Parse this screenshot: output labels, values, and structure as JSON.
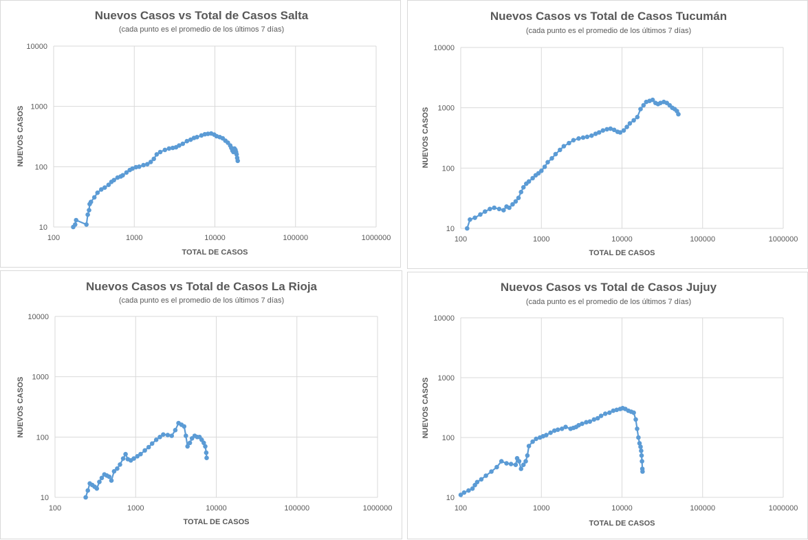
{
  "chart_data": [
    {
      "type": "scatter",
      "title": "Nuevos Casos vs Total de Casos Salta",
      "subtitle": "(cada punto es el promedio de los últimos 7 días)",
      "xlabel": "TOTAL DE CASOS",
      "ylabel": "NUEVOS CASOS",
      "xscale": "log",
      "yscale": "log",
      "xlim": [
        100,
        1000000
      ],
      "ylim": [
        10,
        10000
      ],
      "xticks": [
        "100",
        "1000",
        "10000",
        "100000",
        "1000000"
      ],
      "yticks": [
        "10",
        "100",
        "1000",
        "10000"
      ],
      "series_color": "#5b9bd5",
      "x": [
        175,
        185,
        190,
        255,
        265,
        275,
        280,
        290,
        320,
        350,
        390,
        430,
        480,
        520,
        560,
        620,
        680,
        720,
        800,
        880,
        950,
        1050,
        1150,
        1300,
        1450,
        1600,
        1750,
        1900,
        2100,
        2400,
        2700,
        3000,
        3300,
        3600,
        4000,
        4500,
        5000,
        5500,
        6000,
        6800,
        7500,
        8200,
        9000,
        9800,
        10500,
        11500,
        12500,
        13500,
        14500,
        15500,
        16000,
        16500,
        17000,
        17500,
        18000,
        18300,
        18600,
        18900,
        19200
      ],
      "y": [
        10,
        11,
        13,
        11,
        16,
        19,
        24,
        26,
        31,
        37,
        42,
        45,
        50,
        56,
        60,
        66,
        69,
        72,
        80,
        88,
        93,
        98,
        100,
        106,
        110,
        120,
        135,
        160,
        175,
        190,
        200,
        205,
        210,
        225,
        240,
        265,
        280,
        300,
        310,
        330,
        345,
        350,
        355,
        340,
        320,
        310,
        295,
        270,
        250,
        225,
        205,
        185,
        175,
        200,
        190,
        175,
        160,
        140,
        125
      ]
    },
    {
      "type": "scatter",
      "title": "Nuevos Casos vs Total de Casos Tucumán",
      "subtitle": "(cada punto es el promedio de los últimos 7 días)",
      "xlabel": "TOTAL DE CASOS",
      "ylabel": "NUEVOS CASOS",
      "xscale": "log",
      "yscale": "log",
      "xlim": [
        100,
        1000000
      ],
      "ylim": [
        10,
        10000
      ],
      "xticks": [
        "100",
        "1000",
        "10000",
        "100000",
        "1000000"
      ],
      "yticks": [
        "10",
        "100",
        "1000",
        "10000"
      ],
      "series_color": "#5b9bd5",
      "x": [
        120,
        130,
        150,
        175,
        200,
        230,
        260,
        300,
        340,
        370,
        400,
        440,
        480,
        520,
        560,
        600,
        650,
        700,
        780,
        850,
        920,
        1000,
        1100,
        1200,
        1350,
        1500,
        1700,
        1900,
        2200,
        2500,
        2900,
        3300,
        3700,
        4200,
        4700,
        5200,
        5800,
        6500,
        7200,
        8000,
        8800,
        9500,
        10500,
        11500,
        12500,
        14000,
        15500,
        17000,
        18500,
        20000,
        22000,
        24000,
        26000,
        28000,
        30000,
        33000,
        36000,
        39000,
        42000,
        45000,
        48000,
        50000
      ],
      "y": [
        10,
        14,
        15,
        17,
        19,
        21,
        22,
        21,
        20,
        23,
        22,
        25,
        28,
        32,
        40,
        48,
        55,
        60,
        68,
        76,
        82,
        90,
        105,
        125,
        145,
        170,
        200,
        230,
        260,
        290,
        310,
        320,
        330,
        345,
        370,
        390,
        420,
        440,
        450,
        430,
        400,
        390,
        420,
        480,
        550,
        620,
        700,
        950,
        1100,
        1250,
        1300,
        1350,
        1200,
        1150,
        1200,
        1250,
        1200,
        1100,
        1000,
        950,
        880,
        780
      ]
    },
    {
      "type": "scatter",
      "title": "Nuevos Casos vs Total de Casos La Rioja",
      "subtitle": "(cada punto es el promedio de los últimos 7 días)",
      "xlabel": "TOTAL DE CASOS",
      "ylabel": "NUEVOS CASOS",
      "xscale": "log",
      "yscale": "log",
      "xlim": [
        100,
        1000000
      ],
      "ylim": [
        10,
        10000
      ],
      "xticks": [
        "100",
        "1000",
        "10000",
        "100000",
        "1000000"
      ],
      "yticks": [
        "10",
        "100",
        "1000",
        "10000"
      ],
      "series_color": "#5b9bd5",
      "x": [
        240,
        255,
        270,
        290,
        310,
        330,
        355,
        380,
        410,
        440,
        470,
        500,
        540,
        590,
        640,
        700,
        750,
        800,
        870,
        950,
        1050,
        1150,
        1300,
        1450,
        1600,
        1800,
        2000,
        2200,
        2500,
        2800,
        3100,
        3400,
        3700,
        4000,
        4200,
        4400,
        4700,
        5000,
        5400,
        5800,
        6200,
        6600,
        7000,
        7300,
        7500,
        7600
      ],
      "y": [
        10,
        13,
        17,
        16,
        15,
        14,
        18,
        21,
        24,
        23,
        22,
        19,
        27,
        30,
        35,
        44,
        52,
        43,
        41,
        44,
        48,
        52,
        60,
        68,
        78,
        90,
        100,
        110,
        108,
        105,
        130,
        170,
        160,
        150,
        105,
        70,
        80,
        95,
        105,
        100,
        100,
        90,
        80,
        70,
        55,
        45
      ]
    },
    {
      "type": "scatter",
      "title": "Nuevos Casos vs Total de Casos Jujuy",
      "subtitle": "(cada punto es el promedio de los últimos 7 días)",
      "xlabel": "TOTAL DE CASOS",
      "ylabel": "NUEVOS CASOS",
      "xscale": "log",
      "yscale": "log",
      "xlim": [
        100,
        1000000
      ],
      "ylim": [
        10,
        10000
      ],
      "xticks": [
        "100",
        "1000",
        "10000",
        "100000",
        "1000000"
      ],
      "yticks": [
        "10",
        "100",
        "1000",
        "10000"
      ],
      "series_color": "#5b9bd5",
      "x": [
        100,
        110,
        125,
        140,
        150,
        160,
        180,
        205,
        240,
        280,
        320,
        370,
        420,
        480,
        500,
        530,
        560,
        600,
        640,
        670,
        700,
        780,
        860,
        960,
        1050,
        1150,
        1300,
        1450,
        1600,
        1800,
        2000,
        2300,
        2500,
        2700,
        2900,
        3200,
        3600,
        4000,
        4500,
        5000,
        5500,
        6200,
        7000,
        7800,
        8600,
        9500,
        10200,
        11000,
        12000,
        13000,
        14000,
        14800,
        15400,
        16000,
        16500,
        17000,
        17300,
        17500,
        17700,
        17900,
        18000
      ],
      "y": [
        11,
        12,
        13,
        14,
        16,
        18,
        20,
        23,
        27,
        32,
        40,
        37,
        36,
        35,
        45,
        40,
        30,
        35,
        40,
        50,
        72,
        85,
        95,
        100,
        105,
        110,
        120,
        130,
        135,
        140,
        150,
        140,
        145,
        150,
        160,
        170,
        180,
        185,
        200,
        210,
        230,
        250,
        260,
        280,
        290,
        300,
        310,
        300,
        280,
        270,
        260,
        200,
        140,
        100,
        80,
        70,
        60,
        50,
        40,
        30,
        27
      ]
    }
  ]
}
